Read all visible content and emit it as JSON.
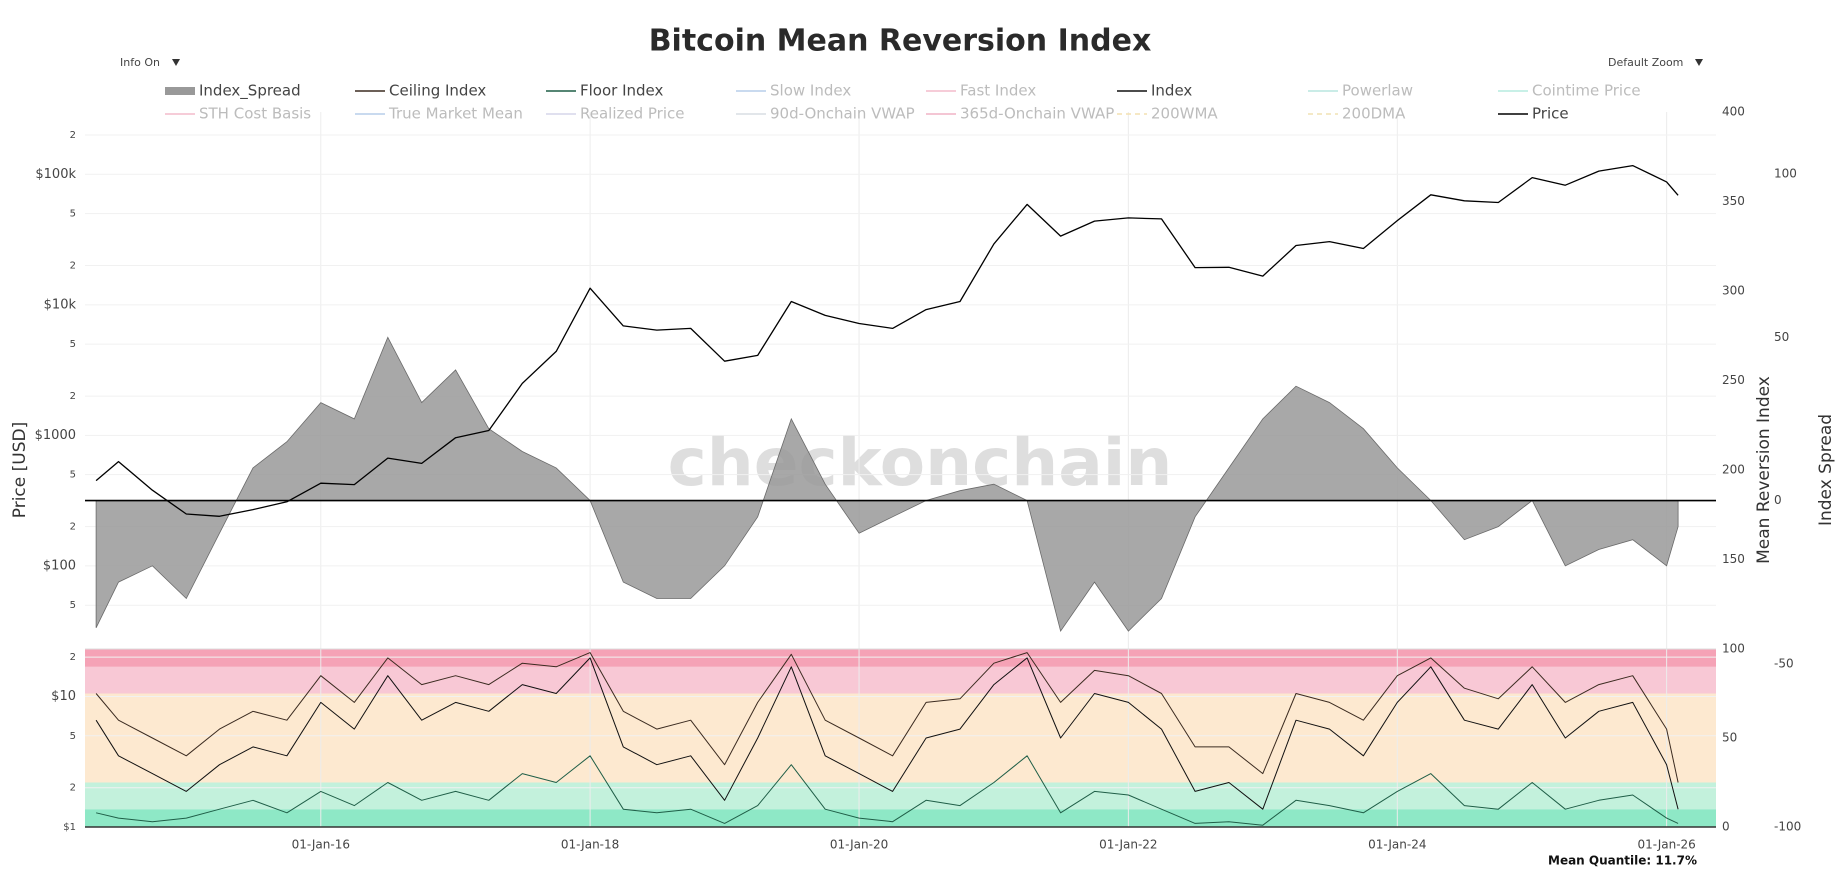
{
  "chart_data": {
    "type": "line",
    "title": "Bitcoin Mean Reversion Index",
    "controls": [
      "Info On",
      "Default Zoom"
    ],
    "watermark": "checkonchain",
    "annotation": "Mean Quantile: 11.7%",
    "y_label": "Price [USD]",
    "y2_label": "Mean Reversion Index",
    "y3_label": "Index Spread",
    "log_y": true,
    "grid": true,
    "xlim": [
      "2014-04-01",
      "2026-05-15"
    ],
    "xticks": [
      {
        "value": "2016-01-01",
        "label": "01-Jan-16"
      },
      {
        "value": "2018-01-01",
        "label": "01-Jan-18"
      },
      {
        "value": "2020-01-01",
        "label": "01-Jan-20"
      },
      {
        "value": "2022-01-01",
        "label": "01-Jan-22"
      },
      {
        "value": "2024-01-01",
        "label": "01-Jan-24"
      },
      {
        "value": "2026-01-01",
        "label": "01-Jan-26"
      }
    ],
    "ylim": [
      1,
      300000
    ],
    "yticks": [
      {
        "value": 1,
        "label": "$1"
      },
      2,
      5,
      {
        "value": 10,
        "label": "$10"
      },
      {
        "value": 20,
        "label": "2"
      },
      {
        "value": 50,
        "label": "5"
      },
      {
        "value": 100,
        "label": "$100"
      },
      {
        "value": 200,
        "label": "2"
      },
      {
        "value": 500,
        "label": "5"
      },
      {
        "value": 1000,
        "label": "$1000"
      },
      {
        "value": 2000,
        "label": "2"
      },
      {
        "value": 5000,
        "label": "5"
      },
      {
        "value": 10000,
        "label": "$10k"
      },
      {
        "value": 20000,
        "label": "2"
      },
      {
        "value": 50000,
        "label": "5"
      },
      {
        "value": 100000,
        "label": "$100k"
      },
      {
        "value": 200000,
        "label": "2"
      }
    ],
    "y2lim": [
      100,
      400
    ],
    "y2ticks": [
      150,
      200,
      250,
      300,
      350,
      400
    ],
    "y3lim": [
      -100,
      119
    ],
    "y3ticks": [
      -100,
      -50,
      0,
      50,
      100
    ],
    "y4lim": [
      0,
      100
    ],
    "y4ticks": [
      0,
      50,
      100
    ],
    "bands": [
      {
        "from": 0,
        "to": 10,
        "color": "#8ee8c6"
      },
      {
        "from": 10,
        "to": 25,
        "color": "#c3f1dc"
      },
      {
        "from": 25,
        "to": 75,
        "color": "#fde9d0"
      },
      {
        "from": 75,
        "to": 90,
        "color": "#f8c8d5"
      },
      {
        "from": 90,
        "to": 100,
        "color": "#f5a2b6"
      }
    ],
    "x": [
      "2014-05-01",
      "2014-07-01",
      "2014-10-01",
      "2015-01-01",
      "2015-04-01",
      "2015-07-01",
      "2015-10-01",
      "2016-01-01",
      "2016-04-01",
      "2016-07-01",
      "2016-10-01",
      "2017-01-01",
      "2017-04-01",
      "2017-07-01",
      "2017-10-01",
      "2018-01-01",
      "2018-04-01",
      "2018-07-01",
      "2018-10-01",
      "2019-01-01",
      "2019-04-01",
      "2019-07-01",
      "2019-10-01",
      "2020-01-01",
      "2020-04-01",
      "2020-07-01",
      "2020-10-01",
      "2021-01-01",
      "2021-04-01",
      "2021-07-01",
      "2021-10-01",
      "2022-01-01",
      "2022-04-01",
      "2022-07-01",
      "2022-10-01",
      "2023-01-01",
      "2023-04-01",
      "2023-07-01",
      "2023-10-01",
      "2024-01-01",
      "2024-04-01",
      "2024-07-01",
      "2024-10-01",
      "2025-01-01",
      "2025-04-01",
      "2025-07-01",
      "2025-10-01",
      "2026-01-01",
      "2026-02-01"
    ],
    "series": [
      {
        "name": "Index_Spread",
        "color": "#999999",
        "style": "area",
        "axis": "y3",
        "visible": true,
        "values": [
          -39,
          -25,
          -20,
          -30,
          -10,
          10,
          18,
          30,
          25,
          50,
          30,
          40,
          22,
          15,
          10,
          0,
          -25,
          -30,
          -30,
          -20,
          -5,
          25,
          5,
          -10,
          -5,
          0,
          3,
          5,
          0,
          -40,
          -25,
          -40,
          -30,
          -5,
          10,
          25,
          35,
          30,
          22,
          10,
          0,
          -12,
          -8,
          0,
          -20,
          -15,
          -12,
          -20,
          -8
        ]
      },
      {
        "name": "Ceiling Index",
        "color": "#3b2b20",
        "style": "line",
        "axis": "y4",
        "visible": true,
        "values": [
          75,
          60,
          50,
          40,
          55,
          65,
          60,
          85,
          70,
          95,
          80,
          85,
          80,
          92,
          90,
          98,
          65,
          55,
          60,
          35,
          70,
          97,
          60,
          50,
          40,
          70,
          72,
          92,
          98,
          70,
          88,
          85,
          75,
          45,
          45,
          30,
          75,
          70,
          60,
          85,
          95,
          78,
          72,
          90,
          70,
          80,
          85,
          55,
          25
        ]
      },
      {
        "name": "Floor Index",
        "color": "#1f5e47",
        "style": "line",
        "axis": "y4",
        "visible": true,
        "values": [
          8,
          5,
          3,
          5,
          10,
          15,
          8,
          20,
          12,
          25,
          15,
          20,
          15,
          30,
          25,
          40,
          10,
          8,
          10,
          2,
          12,
          35,
          10,
          5,
          3,
          15,
          12,
          25,
          40,
          8,
          20,
          18,
          10,
          2,
          3,
          1,
          15,
          12,
          8,
          20,
          30,
          12,
          10,
          25,
          10,
          15,
          18,
          5,
          2
        ]
      },
      {
        "name": "Slow Index",
        "color": "#b7cdea",
        "style": "line",
        "visible": false
      },
      {
        "name": "Fast Index",
        "color": "#f3bccb",
        "style": "line",
        "visible": false
      },
      {
        "name": "Index",
        "color": "#111111",
        "style": "line",
        "axis": "y4",
        "visible": true,
        "values": [
          60,
          40,
          30,
          20,
          35,
          45,
          40,
          70,
          55,
          85,
          60,
          70,
          65,
          80,
          75,
          95,
          45,
          35,
          40,
          15,
          50,
          90,
          40,
          30,
          20,
          50,
          55,
          80,
          95,
          50,
          75,
          70,
          55,
          20,
          25,
          10,
          60,
          55,
          40,
          70,
          90,
          60,
          55,
          80,
          50,
          65,
          70,
          35,
          10
        ]
      },
      {
        "name": "Powerlaw",
        "color": "#b9e6df",
        "style": "line",
        "visible": false
      },
      {
        "name": "Cointime Price",
        "color": "#b6ecdf",
        "style": "line",
        "visible": false
      },
      {
        "name": "STH Cost Basis",
        "color": "#f3bccb",
        "style": "line",
        "visible": false
      },
      {
        "name": "True Market Mean",
        "color": "#b7cdea",
        "style": "line",
        "visible": false
      },
      {
        "name": "Realized Price",
        "color": "#d5d5ea",
        "style": "line",
        "visible": false
      },
      {
        "name": "90d-Onchain VWAP",
        "color": "#d9dde3",
        "style": "line",
        "visible": false
      },
      {
        "name": "365d-Onchain VWAP",
        "color": "#f0b3c6",
        "style": "line",
        "visible": false
      },
      {
        "name": "200WMA",
        "color": "#f3e0b0",
        "style": "dash",
        "visible": false
      },
      {
        "name": "200DMA",
        "color": "#f1e2b4",
        "style": "dash",
        "visible": false
      },
      {
        "name": "Price",
        "color": "#000000",
        "style": "line",
        "axis": "y",
        "visible": true,
        "values": [
          450,
          630,
          380,
          250,
          240,
          270,
          310,
          430,
          420,
          670,
          610,
          960,
          1090,
          2500,
          4400,
          13400,
          6900,
          6400,
          6600,
          3700,
          4100,
          10600,
          8300,
          7200,
          6600,
          9200,
          10600,
          29300,
          58800,
          33600,
          43800,
          46300,
          45500,
          19300,
          19400,
          16600,
          28500,
          30500,
          27000,
          44200,
          69600,
          62700,
          60800,
          94400,
          82500,
          105700,
          116500,
          87500,
          69000
        ]
      }
    ]
  }
}
